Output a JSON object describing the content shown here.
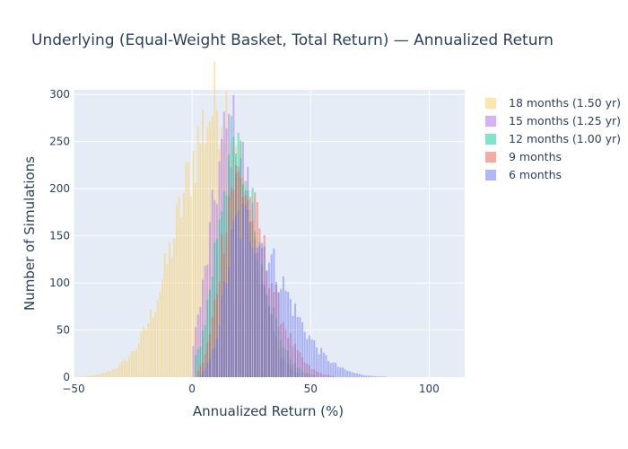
{
  "chart_data": {
    "type": "bar",
    "barmode": "overlay",
    "title": "Underlying (Equal-Weight Basket, Total Return) — Annualized Return",
    "xlabel": "Annualized Return (%)",
    "ylabel": "Number of Simulations",
    "xlim": [
      -50,
      115
    ],
    "ylim": [
      0,
      305
    ],
    "x_ticks": [
      "−50",
      "0",
      "50",
      "100"
    ],
    "x_tick_values": [
      -50,
      0,
      50,
      100
    ],
    "y_ticks": [
      "0",
      "50",
      "100",
      "150",
      "200",
      "250",
      "300"
    ],
    "y_tick_values": [
      0,
      50,
      100,
      150,
      200,
      250,
      300
    ],
    "grid": true,
    "legend_position": "right",
    "series": [
      {
        "name": "18 months (1.50 yr)",
        "color": "#FECB52",
        "center": 12,
        "peak": 292,
        "left_width": 17,
        "right_width": 12,
        "min": -48,
        "max": 38
      },
      {
        "name": "15 months (1.25 yr)",
        "color": "#AB63FA",
        "center": 16,
        "peak": 262,
        "left_width": 8,
        "right_width": 10,
        "min": 0,
        "max": 45
      },
      {
        "name": "12 months (1.00 yr)",
        "color": "#00CC96",
        "center": 17,
        "peak": 238,
        "left_width": 7,
        "right_width": 11,
        "min": 1,
        "max": 52
      },
      {
        "name": "9 months",
        "color": "#EF553B",
        "center": 18,
        "peak": 210,
        "left_width": 6,
        "right_width": 13,
        "min": 2,
        "max": 60
      },
      {
        "name": "6 months",
        "color": "#636EFA",
        "center": 20,
        "peak": 165,
        "left_width": 6,
        "right_width": 18,
        "min": 3,
        "max": 112
      }
    ]
  },
  "legend": {
    "items": [
      {
        "label": "18 months (1.50 yr)",
        "color": "#FECB52"
      },
      {
        "label": "15 months (1.25 yr)",
        "color": "#AB63FA"
      },
      {
        "label": "12 months (1.00 yr)",
        "color": "#00CC96"
      },
      {
        "label": "9 months",
        "color": "#EF553B"
      },
      {
        "label": "6 months",
        "color": "#636EFA"
      }
    ]
  }
}
